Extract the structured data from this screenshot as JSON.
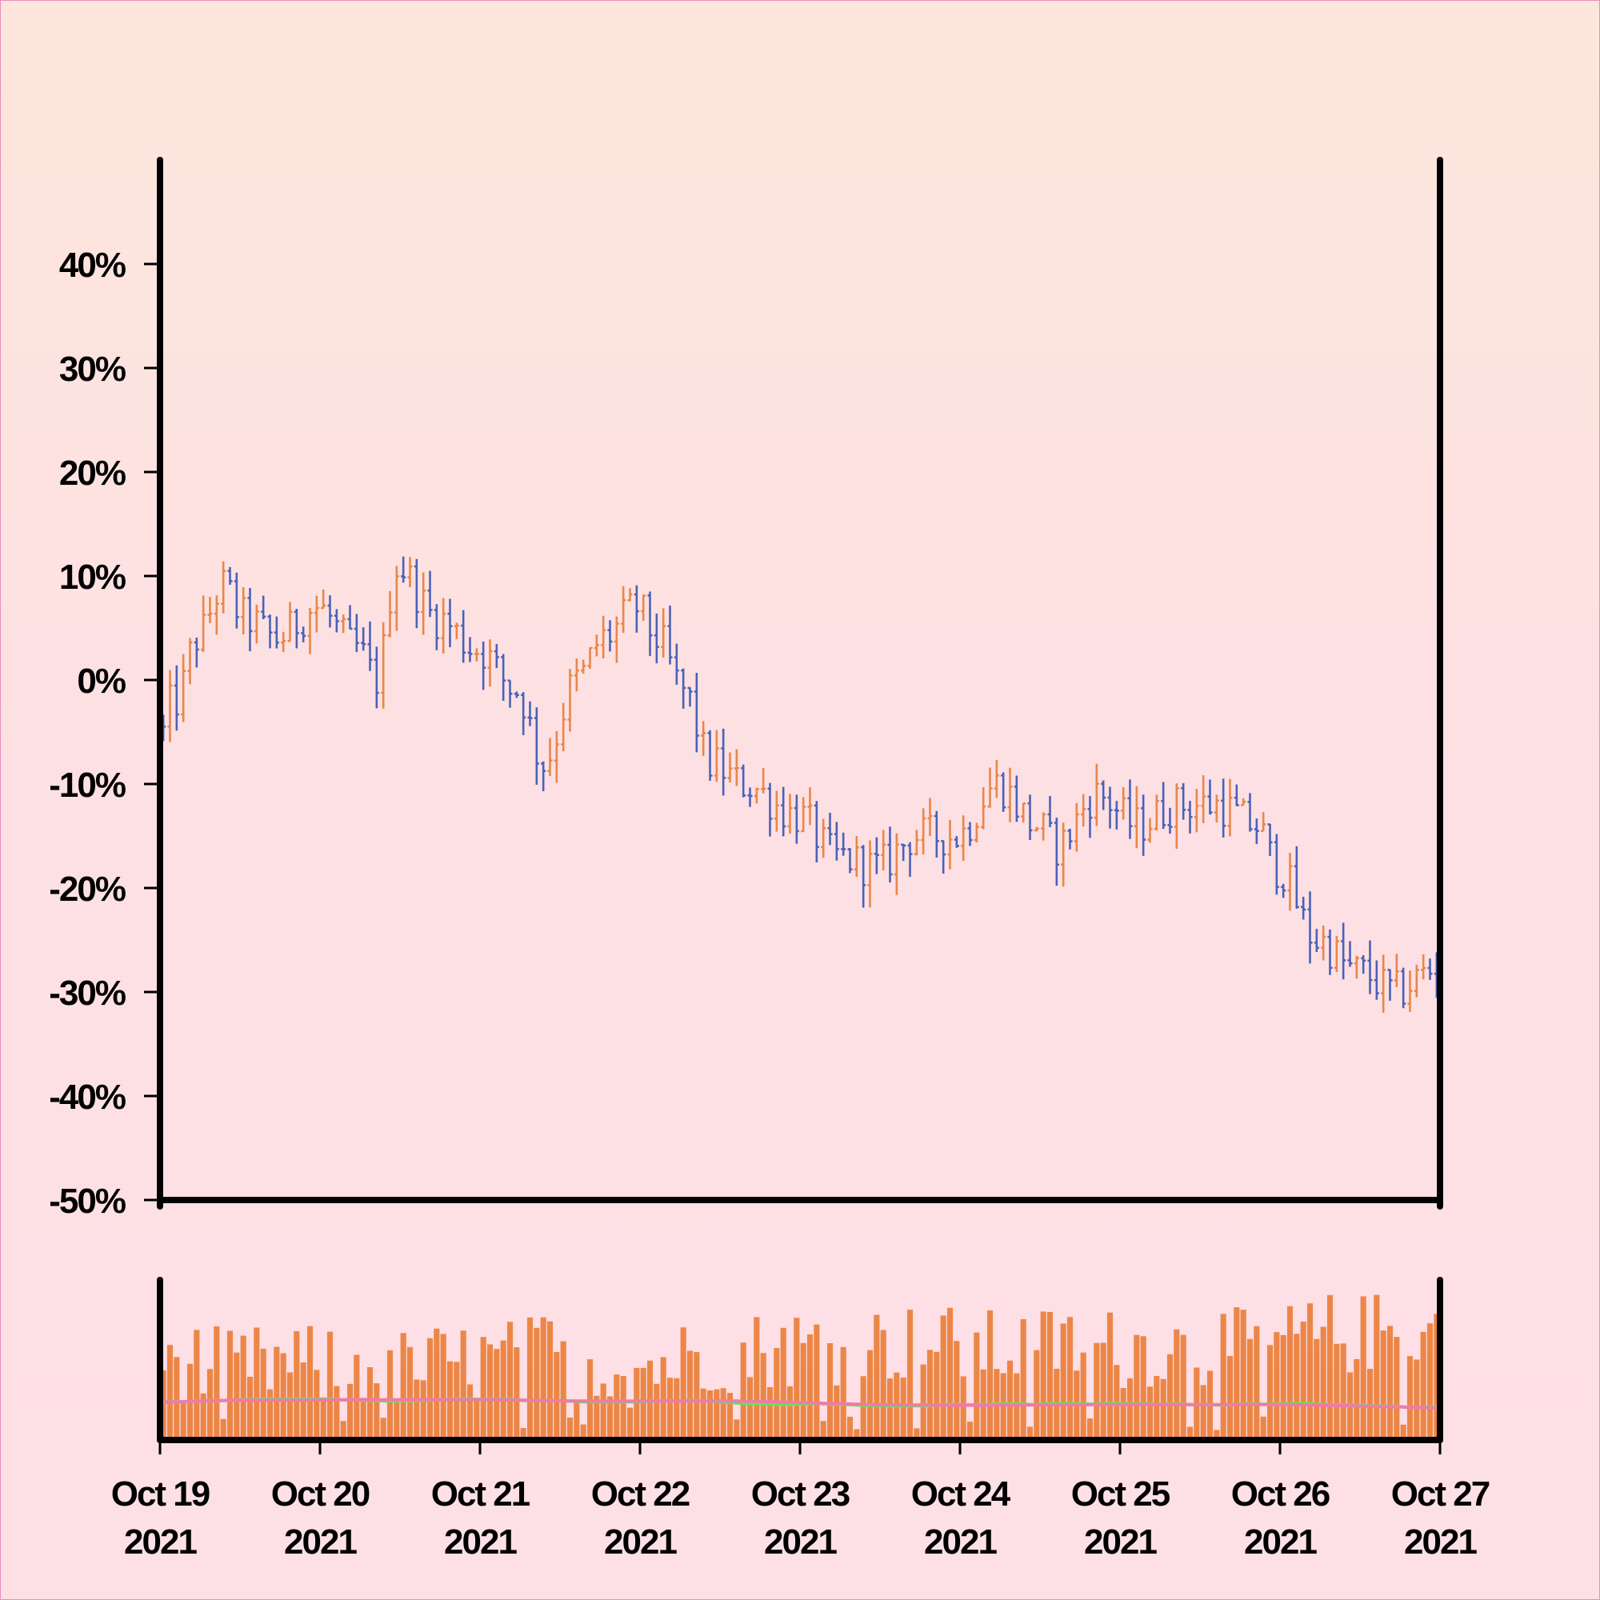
{
  "chart_data": {
    "type": "ohlc",
    "title": "",
    "xlabel": "",
    "ylabel": "",
    "price_panel": {
      "ylim": [
        -50,
        50
      ],
      "yticks": [
        -50,
        -40,
        -30,
        -20,
        -10,
        0,
        10,
        20,
        30,
        40
      ],
      "ytick_labels": [
        "-50%",
        "-40%",
        "-30%",
        "-20%",
        "-10%",
        "0%",
        "10%",
        "20%",
        "30%",
        "40%"
      ],
      "bar_interval_hours": 1,
      "start": "2021-10-19T00:00",
      "close_pct_anchors": [
        {
          "t": "2021-10-19T00:00",
          "v": -4
        },
        {
          "t": "2021-10-19T03:00",
          "v": -2
        },
        {
          "t": "2021-10-19T06:00",
          "v": 4
        },
        {
          "t": "2021-10-19T10:00",
          "v": 9
        },
        {
          "t": "2021-10-19T13:00",
          "v": 6
        },
        {
          "t": "2021-10-19T18:00",
          "v": 4
        },
        {
          "t": "2021-10-20T00:00",
          "v": 7
        },
        {
          "t": "2021-10-20T06:00",
          "v": 3
        },
        {
          "t": "2021-10-20T09:00",
          "v": 0
        },
        {
          "t": "2021-10-20T12:00",
          "v": 11
        },
        {
          "t": "2021-10-20T18:00",
          "v": 6
        },
        {
          "t": "2021-10-21T00:00",
          "v": 3
        },
        {
          "t": "2021-10-21T06:00",
          "v": -1
        },
        {
          "t": "2021-10-21T10:00",
          "v": -8
        },
        {
          "t": "2021-10-21T15:00",
          "v": 0
        },
        {
          "t": "2021-10-21T19:00",
          "v": 4
        },
        {
          "t": "2021-10-22T00:00",
          "v": 7
        },
        {
          "t": "2021-10-22T03:00",
          "v": 4
        },
        {
          "t": "2021-10-22T07:00",
          "v": -1
        },
        {
          "t": "2021-10-22T11:00",
          "v": -8
        },
        {
          "t": "2021-10-22T16:00",
          "v": -10
        },
        {
          "t": "2021-10-23T00:00",
          "v": -13
        },
        {
          "t": "2021-10-23T06:00",
          "v": -17
        },
        {
          "t": "2021-10-23T12:00",
          "v": -18
        },
        {
          "t": "2021-10-23T18:00",
          "v": -15
        },
        {
          "t": "2021-10-24T00:00",
          "v": -15
        },
        {
          "t": "2021-10-24T06:00",
          "v": -10
        },
        {
          "t": "2021-10-24T12:00",
          "v": -14
        },
        {
          "t": "2021-10-24T15:00",
          "v": -16
        },
        {
          "t": "2021-10-24T21:00",
          "v": -11
        },
        {
          "t": "2021-10-25T03:00",
          "v": -14
        },
        {
          "t": "2021-10-25T09:00",
          "v": -12
        },
        {
          "t": "2021-10-25T15:00",
          "v": -12
        },
        {
          "t": "2021-10-25T21:00",
          "v": -14
        },
        {
          "t": "2021-10-26T00:00",
          "v": -18
        },
        {
          "t": "2021-10-26T06:00",
          "v": -25
        },
        {
          "t": "2021-10-26T12:00",
          "v": -28
        },
        {
          "t": "2021-10-26T18:00",
          "v": -30
        },
        {
          "t": "2021-10-26T23:00",
          "v": -28
        }
      ],
      "up_color": "#e8874a",
      "down_color": "#4a62b8"
    },
    "volume_panel": {
      "bar_color": "#ec8647",
      "ma_fast_color": "#5ee65a",
      "ma_slow_color": "#f07aa8"
    },
    "x_ticks": [
      {
        "line1": "Oct 19",
        "line2": "2021"
      },
      {
        "line1": "Oct 20",
        "line2": "2021"
      },
      {
        "line1": "Oct 21",
        "line2": "2021"
      },
      {
        "line1": "Oct 22",
        "line2": "2021"
      },
      {
        "line1": "Oct 23",
        "line2": "2021"
      },
      {
        "line1": "Oct 24",
        "line2": "2021"
      },
      {
        "line1": "Oct 25",
        "line2": "2021"
      },
      {
        "line1": "Oct 26",
        "line2": "2021"
      },
      {
        "line1": "Oct 27",
        "line2": "2021"
      }
    ]
  }
}
